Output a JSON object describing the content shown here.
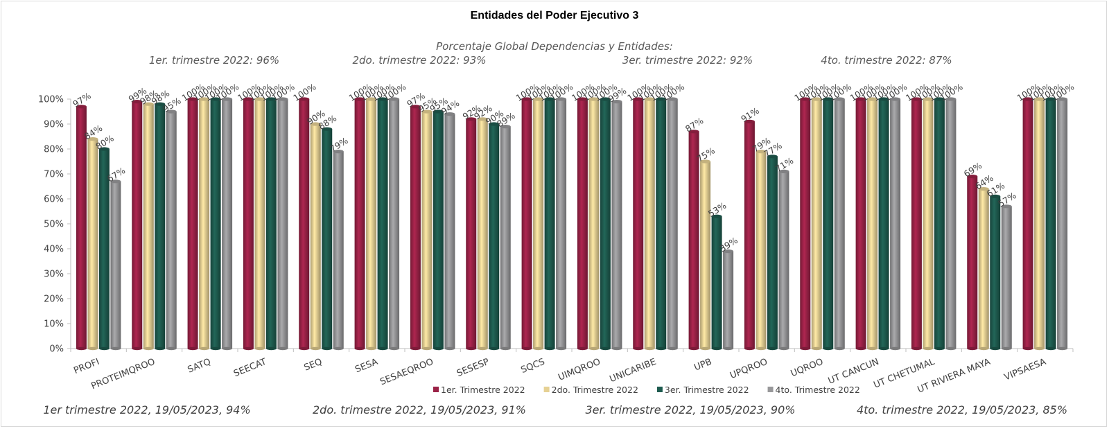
{
  "colors": {
    "q1": "#9b2247",
    "q2": "#e6d194",
    "q3": "#1e5b4f",
    "q4": "#98989a"
  },
  "chart_data": {
    "type": "bar",
    "title": "Entidades del Poder Ejecutivo 3",
    "header": "Porcentaje Global  Dependencias y Entidades:",
    "quarter_labels": [
      "1er. trimestre 2022: 96%",
      "2do. trimestre 2022: 93%",
      "3er. trimestre 2022: 92%",
      "4to. trimestre 2022: 87%"
    ],
    "footer_labels": [
      "1er trimestre  2022,  19/05/2023, 94%",
      "2do. trimestre 2022, 19/05/2023, 91%",
      "3er. trimestre 2022, 19/05/2023, 90%",
      "4to. trimestre 2022, 19/05/2023, 85%"
    ],
    "categories": [
      "PROFI",
      "PROTEIMQROO",
      "SATQ",
      "SEECAT",
      "SEQ",
      "SESA",
      "SESAEQROO",
      "SESESP",
      "SQCS",
      "UIMQROO",
      "UNICARIBE",
      "UPB",
      "UPQROO",
      "UQROO",
      "UT CANCUN",
      "UT CHETUMAL",
      "UT RIVIERA MAYA",
      "VIPSAESA"
    ],
    "series": [
      {
        "name": "1er. Trimestre 2022",
        "values": [
          97,
          99,
          100,
          100,
          100,
          100,
          97,
          92,
          100,
          100,
          100,
          87,
          91,
          100,
          100,
          100,
          69,
          100
        ]
      },
      {
        "name": "2do. Trimestre 2022",
        "values": [
          84,
          98,
          100,
          100,
          90,
          100,
          95,
          92,
          100,
          100,
          100,
          75,
          79,
          100,
          100,
          100,
          64,
          100
        ]
      },
      {
        "name": "3er. Trimestre 2022",
        "values": [
          80,
          98,
          100,
          100,
          88,
          100,
          95,
          90,
          100,
          100,
          100,
          53,
          77,
          100,
          100,
          100,
          61,
          100
        ]
      },
      {
        "name": "4to. Trimestre 2022",
        "values": [
          67,
          95,
          100,
          100,
          79,
          100,
          94,
          89,
          100,
          99,
          100,
          39,
          71,
          100,
          100,
          100,
          57,
          100
        ]
      }
    ],
    "y_ticks": [
      "0%",
      "10%",
      "20%",
      "30%",
      "40%",
      "50%",
      "60%",
      "70%",
      "80%",
      "90%",
      "100%"
    ],
    "ylim": [
      0,
      100
    ],
    "value_suffix": "%",
    "legend_position": "bottom",
    "grid": false
  }
}
